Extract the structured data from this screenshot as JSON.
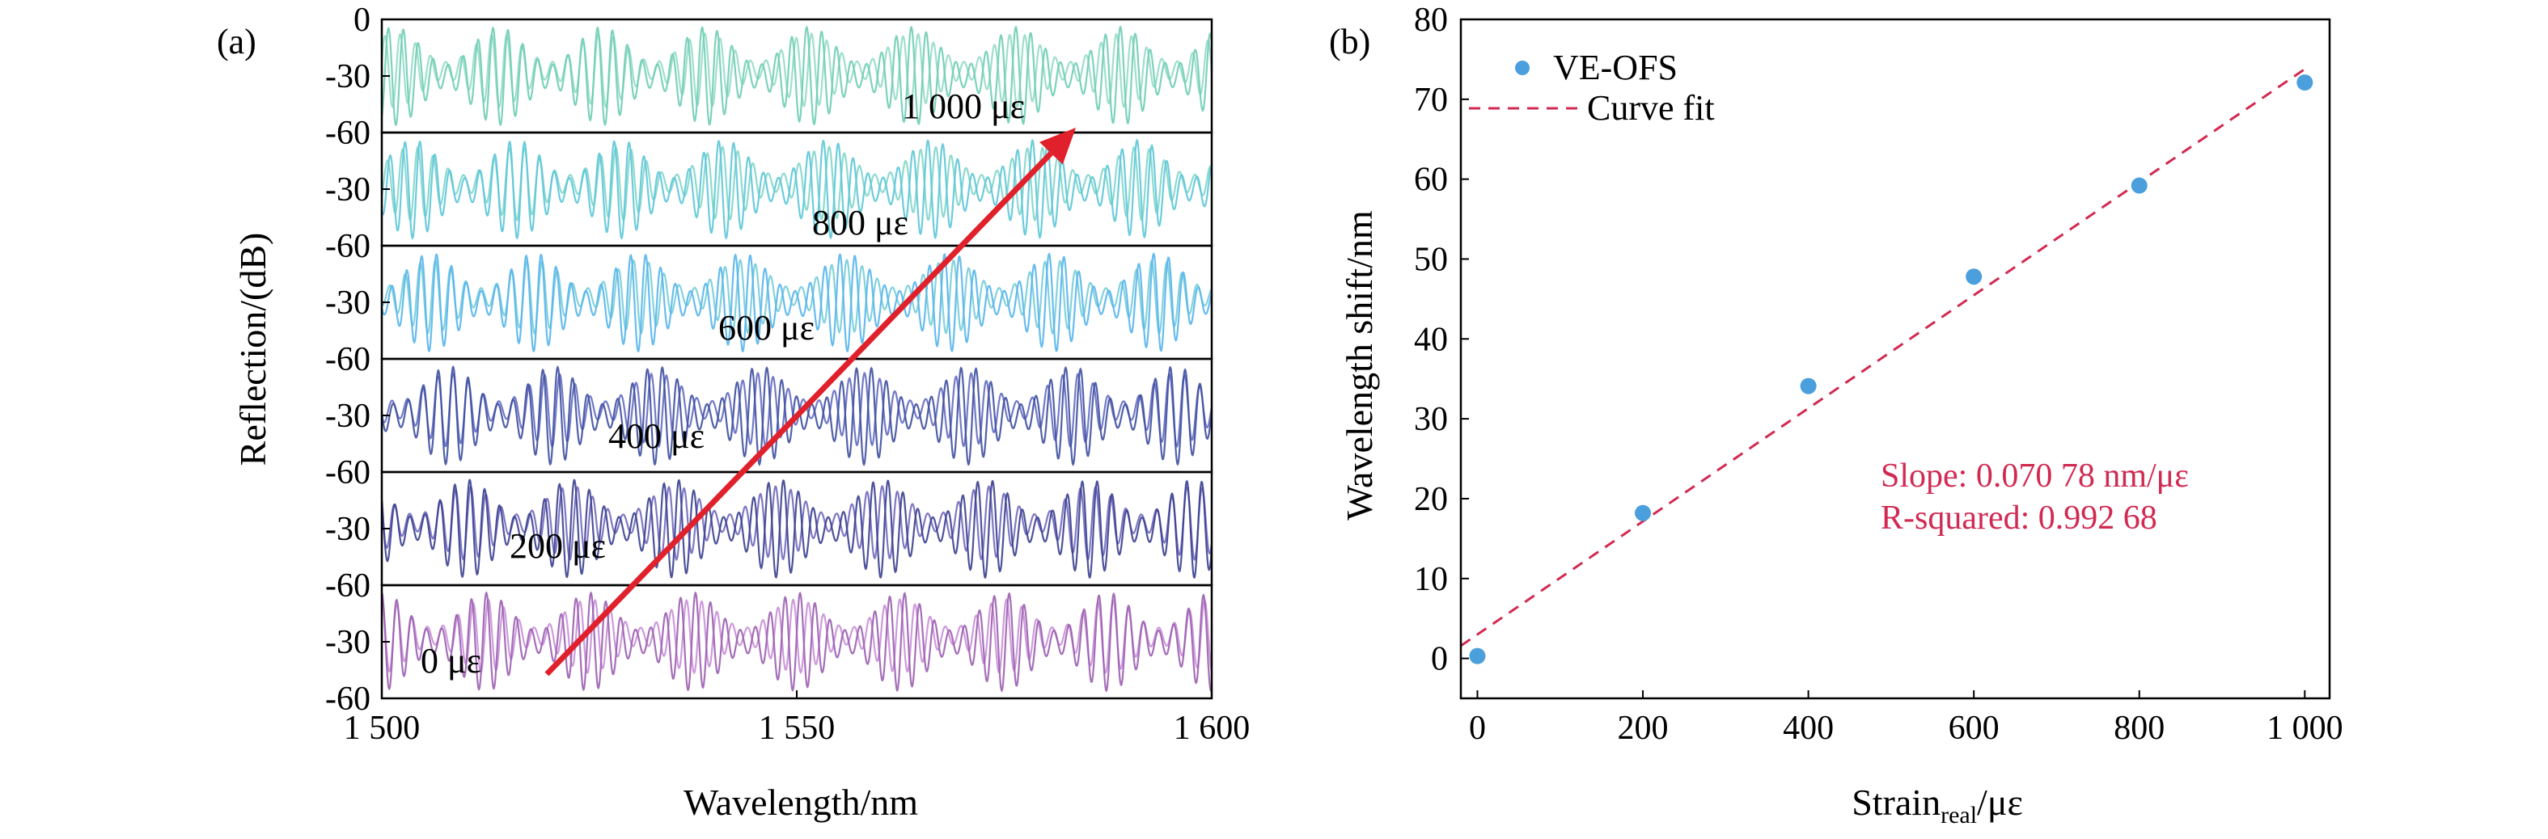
{
  "chart_data": [
    {
      "type": "line",
      "panel_label": "(a)",
      "xlabel": "Wavelength/nm",
      "ylabel": "Reflection/(dB)",
      "xlim": [
        1500,
        1600
      ],
      "x_ticks": [
        1500,
        1550,
        1600
      ],
      "x_tick_labels": [
        "1 500",
        "1 550",
        "1 600"
      ],
      "y_tick_labels": [
        "0",
        "-30",
        "-60"
      ],
      "ylim_per_trace": [
        -60,
        0
      ],
      "stacked": true,
      "series": [
        {
          "name": "0 με",
          "color_a": "#9b5fb0",
          "color_b": "#c58ad6",
          "fringe_period_nm": 1.8,
          "envelope_period_nm": 12.5,
          "envelope_phase": 0.0
        },
        {
          "name": "200 με",
          "color_a": "#3a3f8f",
          "color_b": "#6a60b8",
          "fringe_period_nm": 1.8,
          "envelope_period_nm": 12.5,
          "envelope_phase": 1.1
        },
        {
          "name": "400 με",
          "color_a": "#3e4fa0",
          "color_b": "#5b63bc",
          "fringe_period_nm": 1.8,
          "envelope_period_nm": 12.5,
          "envelope_phase": 2.2
        },
        {
          "name": "600 με",
          "color_a": "#57b5ec",
          "color_b": "#6fcad6",
          "fringe_period_nm": 1.8,
          "envelope_period_nm": 12.5,
          "envelope_phase": 3.3
        },
        {
          "name": "800 με",
          "color_a": "#5cc6d8",
          "color_b": "#7ad4c8",
          "fringe_period_nm": 1.8,
          "envelope_period_nm": 12.5,
          "envelope_phase": 4.4
        },
        {
          "name": "1 000 με",
          "color_a": "#6fcdb5",
          "color_b": "#8ed9c4",
          "fringe_period_nm": 1.8,
          "envelope_period_nm": 12.5,
          "envelope_phase": 5.5
        }
      ],
      "annotations": [
        {
          "text": "0 με"
        },
        {
          "text": "200 με"
        },
        {
          "text": "400 με"
        },
        {
          "text": "600 με"
        },
        {
          "text": "800 με"
        },
        {
          "text": "1 000 με"
        }
      ],
      "arrow_color": "#e0202a"
    },
    {
      "type": "scatter",
      "panel_label": "(b)",
      "xlabel": "Strain",
      "xlabel_sub": "real",
      "xlabel_suffix": "/με",
      "ylabel": "Wavelength shift/nm",
      "xlim": [
        -20,
        1030
      ],
      "ylim": [
        -5,
        80
      ],
      "x_ticks": [
        0,
        200,
        400,
        600,
        800,
        1000
      ],
      "x_tick_labels": [
        "0",
        "200",
        "400",
        "600",
        "800",
        "1 000"
      ],
      "y_ticks": [
        0,
        10,
        20,
        30,
        40,
        50,
        60,
        70,
        80
      ],
      "y_tick_labels": [
        "0",
        "10",
        "20",
        "30",
        "40",
        "50",
        "60",
        "70",
        "80"
      ],
      "series": [
        {
          "name": "VE-OFS",
          "x": [
            0,
            200,
            400,
            600,
            800,
            1000
          ],
          "y": [
            0.3,
            18.2,
            34.1,
            47.8,
            59.2,
            72.1
          ],
          "color": "#4a9fdc"
        }
      ],
      "fit": {
        "name": "Curve fit",
        "slope": 0.07078,
        "intercept": 3.0,
        "x_range": [
          -20,
          1000
        ],
        "color": "#d12a52"
      },
      "fit_text": [
        "Slope: 0.070 78 nm/με",
        "R-squared: 0.992 68"
      ],
      "legend_position": "top-left"
    }
  ]
}
